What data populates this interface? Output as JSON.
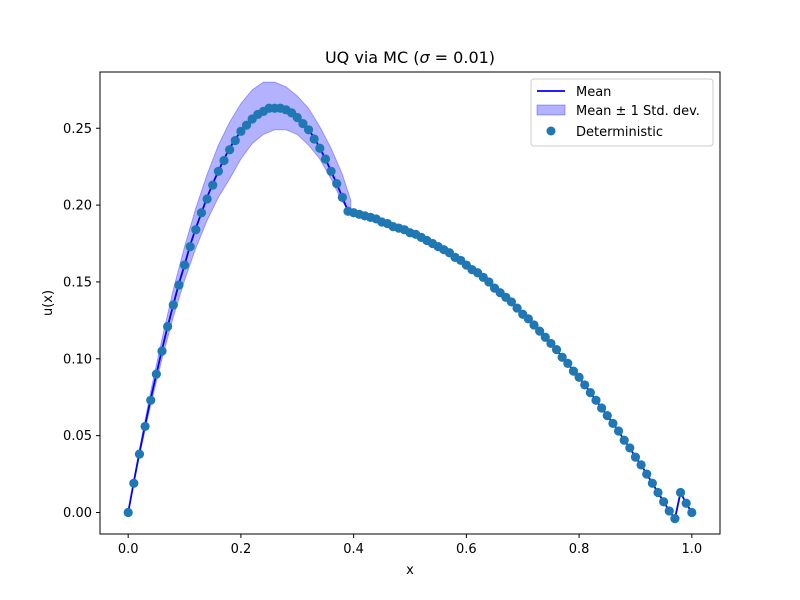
{
  "chart_data": {
    "type": "line",
    "title": "UQ via MC (σ = 0.01)",
    "title_main": "UQ via MC (",
    "title_sigma": "σ",
    "title_rest": " = 0.01)",
    "xlabel": "x",
    "ylabel": "u(x)",
    "xlim": [
      -0.05,
      1.05
    ],
    "ylim": [
      -0.014,
      0.2866
    ],
    "x_ticks": [
      0.0,
      0.2,
      0.4,
      0.6,
      0.8,
      1.0
    ],
    "x_tick_labels": [
      "0.0",
      "0.2",
      "0.4",
      "0.6",
      "0.8",
      "1.0"
    ],
    "y_ticks": [
      0.0,
      0.05,
      0.1,
      0.15,
      0.2,
      0.25
    ],
    "y_tick_labels": [
      "0.00",
      "0.05",
      "0.10",
      "0.15",
      "0.20",
      "0.25"
    ],
    "grid": false,
    "legend_position": "top-right",
    "colors": {
      "mean": "#0000ff",
      "band": "#0000ff",
      "deterministic": "#1f77b4"
    },
    "legend": [
      {
        "label": "Mean",
        "kind": "line"
      },
      {
        "label": "Mean ± 1 Std. dev.",
        "kind": "band"
      },
      {
        "label": "Deterministic",
        "kind": "scatter"
      }
    ],
    "series": [
      {
        "name": "Mean",
        "x": [
          0.0,
          0.01,
          0.02,
          0.03,
          0.04,
          0.05,
          0.06,
          0.07,
          0.08,
          0.09,
          0.1,
          0.11,
          0.12,
          0.13,
          0.14,
          0.15,
          0.16,
          0.17,
          0.18,
          0.19,
          0.2,
          0.21,
          0.22,
          0.23,
          0.24,
          0.25,
          0.26,
          0.27,
          0.28,
          0.29,
          0.3,
          0.31,
          0.32,
          0.33,
          0.34,
          0.35,
          0.36,
          0.37,
          0.38,
          0.39,
          0.4,
          0.41,
          0.42,
          0.43,
          0.44,
          0.45,
          0.46,
          0.47,
          0.48,
          0.49,
          0.5,
          0.51,
          0.52,
          0.53,
          0.54,
          0.55,
          0.56,
          0.57,
          0.58,
          0.59,
          0.6,
          0.61,
          0.62,
          0.63,
          0.64,
          0.65,
          0.66,
          0.67,
          0.68,
          0.69,
          0.7,
          0.71,
          0.72,
          0.73,
          0.74,
          0.75,
          0.76,
          0.77,
          0.78,
          0.79,
          0.8,
          0.81,
          0.82,
          0.83,
          0.84,
          0.85,
          0.86,
          0.87,
          0.88,
          0.89,
          0.9,
          0.91,
          0.92,
          0.93,
          0.94,
          0.95,
          0.96,
          0.97,
          0.98,
          0.99,
          1.0
        ],
        "y": [
          0.0,
          0.02,
          0.039,
          0.057,
          0.074,
          0.09,
          0.106,
          0.121,
          0.135,
          0.149,
          0.161,
          0.174,
          0.185,
          0.195,
          0.205,
          0.214,
          0.222,
          0.23,
          0.237,
          0.243,
          0.248,
          0.253,
          0.257,
          0.26,
          0.262,
          0.264,
          0.264,
          0.264,
          0.263,
          0.261,
          0.258,
          0.254,
          0.249,
          0.244,
          0.237,
          0.23,
          0.222,
          0.214,
          0.205,
          0.196,
          0.195,
          0.194,
          0.193,
          0.192,
          0.191,
          0.189,
          0.188,
          0.186,
          0.185,
          0.184,
          0.182,
          0.181,
          0.179,
          0.177,
          0.175,
          0.173,
          0.171,
          0.169,
          0.166,
          0.164,
          0.161,
          0.158,
          0.156,
          0.153,
          0.15,
          0.146,
          0.143,
          0.14,
          0.137,
          0.133,
          0.129,
          0.126,
          0.122,
          0.118,
          0.114,
          0.11,
          0.106,
          0.101,
          0.097,
          0.092,
          0.088,
          0.083,
          0.078,
          0.073,
          0.068,
          0.063,
          0.058,
          0.053,
          0.047,
          0.042,
          0.036,
          0.031,
          0.025,
          0.019,
          0.013,
          0.007,
          0.001,
          -0.004,
          0.013,
          0.006,
          0.0
        ]
      },
      {
        "name": "Mean ± 1 Std. dev.",
        "x": [
          0.0,
          0.02,
          0.04,
          0.06,
          0.08,
          0.1,
          0.12,
          0.14,
          0.16,
          0.18,
          0.2,
          0.22,
          0.24,
          0.26,
          0.28,
          0.3,
          0.32,
          0.34,
          0.36,
          0.38,
          0.395
        ],
        "upper": [
          0.0,
          0.041,
          0.079,
          0.113,
          0.145,
          0.173,
          0.198,
          0.22,
          0.239,
          0.254,
          0.266,
          0.275,
          0.28,
          0.28,
          0.277,
          0.271,
          0.263,
          0.251,
          0.237,
          0.22,
          0.203
        ],
        "lower": [
          0.0,
          0.037,
          0.07,
          0.1,
          0.127,
          0.151,
          0.172,
          0.19,
          0.205,
          0.217,
          0.23,
          0.24,
          0.246,
          0.249,
          0.249,
          0.246,
          0.239,
          0.23,
          0.217,
          0.202,
          0.196
        ]
      },
      {
        "name": "Deterministic",
        "x": [
          0.0,
          0.01,
          0.02,
          0.03,
          0.04,
          0.05,
          0.06,
          0.07,
          0.08,
          0.09,
          0.1,
          0.11,
          0.12,
          0.13,
          0.14,
          0.15,
          0.16,
          0.17,
          0.18,
          0.19,
          0.2,
          0.21,
          0.22,
          0.23,
          0.24,
          0.25,
          0.26,
          0.27,
          0.28,
          0.29,
          0.3,
          0.31,
          0.32,
          0.33,
          0.34,
          0.35,
          0.36,
          0.37,
          0.38,
          0.39,
          0.4,
          0.41,
          0.42,
          0.43,
          0.44,
          0.45,
          0.46,
          0.47,
          0.48,
          0.49,
          0.5,
          0.51,
          0.52,
          0.53,
          0.54,
          0.55,
          0.56,
          0.57,
          0.58,
          0.59,
          0.6,
          0.61,
          0.62,
          0.63,
          0.64,
          0.65,
          0.66,
          0.67,
          0.68,
          0.69,
          0.7,
          0.71,
          0.72,
          0.73,
          0.74,
          0.75,
          0.76,
          0.77,
          0.78,
          0.79,
          0.8,
          0.81,
          0.82,
          0.83,
          0.84,
          0.85,
          0.86,
          0.87,
          0.88,
          0.89,
          0.9,
          0.91,
          0.92,
          0.93,
          0.94,
          0.95,
          0.96,
          0.97,
          0.98,
          0.99,
          1.0
        ],
        "y": [
          0.0,
          0.019,
          0.038,
          0.056,
          0.073,
          0.09,
          0.105,
          0.121,
          0.135,
          0.148,
          0.161,
          0.173,
          0.184,
          0.195,
          0.204,
          0.213,
          0.222,
          0.229,
          0.236,
          0.242,
          0.248,
          0.252,
          0.256,
          0.259,
          0.261,
          0.263,
          0.263,
          0.263,
          0.262,
          0.26,
          0.257,
          0.253,
          0.249,
          0.243,
          0.237,
          0.23,
          0.222,
          0.214,
          0.205,
          0.196,
          0.195,
          0.194,
          0.193,
          0.192,
          0.191,
          0.189,
          0.188,
          0.186,
          0.185,
          0.184,
          0.182,
          0.181,
          0.179,
          0.177,
          0.175,
          0.173,
          0.171,
          0.169,
          0.166,
          0.164,
          0.161,
          0.158,
          0.156,
          0.153,
          0.15,
          0.146,
          0.143,
          0.14,
          0.137,
          0.133,
          0.129,
          0.126,
          0.122,
          0.118,
          0.114,
          0.11,
          0.106,
          0.101,
          0.097,
          0.092,
          0.088,
          0.083,
          0.078,
          0.073,
          0.068,
          0.063,
          0.058,
          0.053,
          0.047,
          0.042,
          0.036,
          0.031,
          0.025,
          0.019,
          0.013,
          0.007,
          0.001,
          -0.004,
          0.013,
          0.006,
          0.0
        ]
      }
    ]
  }
}
